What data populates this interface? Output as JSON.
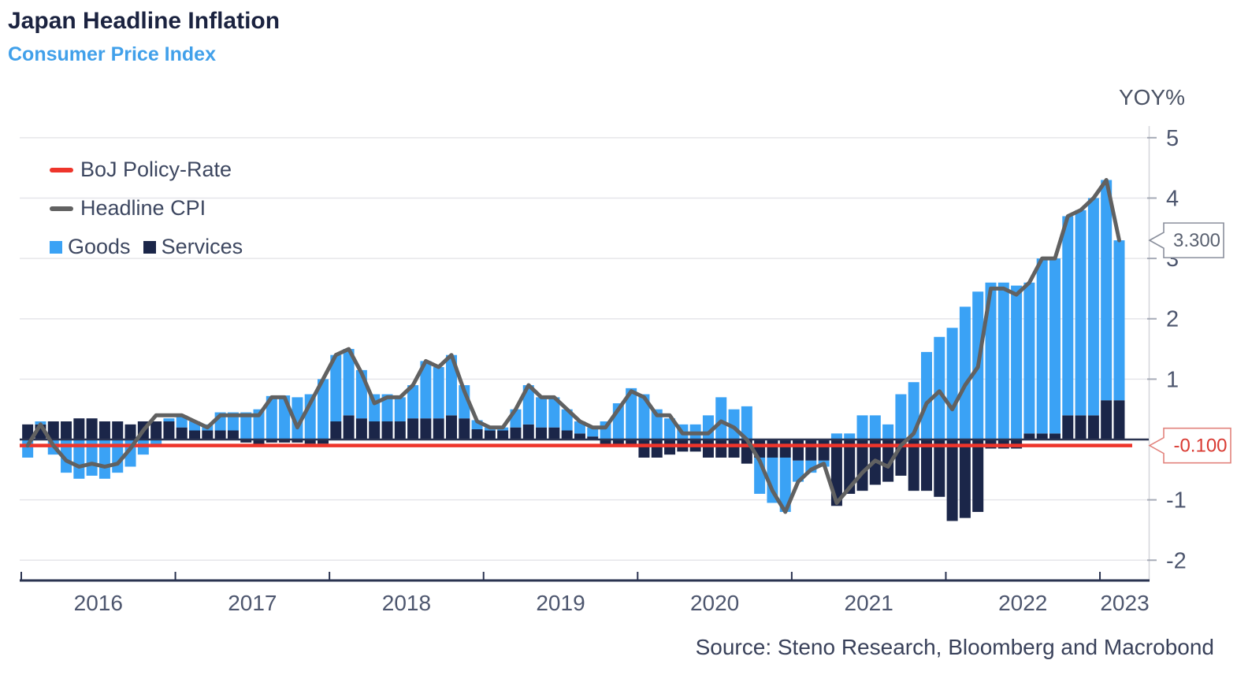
{
  "header": {
    "title": "Japan Headline Inflation",
    "subtitle": "Consumer Price Index",
    "unit_label": "YOY%"
  },
  "source": "Source: Steno Research, Bloomberg and Macrobond",
  "legend": {
    "rows": [
      [
        {
          "label": "BoJ Policy-Rate",
          "marker": "line",
          "color": "#ee352b"
        }
      ],
      [
        {
          "label": "Headline CPI",
          "marker": "line",
          "color": "#616161"
        }
      ],
      [
        {
          "label": "Goods",
          "marker": "square",
          "color": "#3aa2f5"
        },
        {
          "label": "Services",
          "marker": "square",
          "color": "#1b2649"
        }
      ]
    ]
  },
  "callouts": {
    "cpi_last": {
      "value": "3.300",
      "at": 3.3,
      "border": "#8a8f9c",
      "text_color": "#5a6170"
    },
    "policy_rate": {
      "value": "-0.100",
      "at": -0.1,
      "border": "#e2837d",
      "text_color": "#d93a32"
    }
  },
  "colors": {
    "goods": "#3aa2f5",
    "services": "#1b2649",
    "cpi_line": "#616161",
    "policy_line": "#ee352b",
    "gridline": "#e6e6ea",
    "zero_line": "#2a3350",
    "axis_line": "#2a3350",
    "y_axis_line": "#d5d6da",
    "y_tick": "#a6abb7",
    "tick_label": "#4d566e"
  },
  "chart_data": {
    "type": "bar",
    "subtype": "stacked monthly bars with two overlay lines",
    "title": "Japan Headline Inflation",
    "subtitle": "Consumer Price Index",
    "ylabel": "YOY%",
    "ylim": [
      -2.35,
      5.2
    ],
    "grid": true,
    "legend_position": "top-left",
    "start_month": "2016-01",
    "end_month": "2023-02",
    "x_year_labels": [
      "2016",
      "2017",
      "2018",
      "2019",
      "2020",
      "2021",
      "2022",
      "2023"
    ],
    "y_ticks": [
      5,
      4,
      3,
      2,
      1,
      -1,
      -2
    ],
    "series": [
      {
        "name": "Goods",
        "type": "bar",
        "color": "#3aa2f5",
        "values": [
          -0.3,
          0.05,
          -0.25,
          -0.55,
          -0.65,
          -0.6,
          -0.65,
          -0.55,
          -0.45,
          -0.25,
          -0.1,
          0.05,
          0.2,
          0.15,
          0.1,
          0.3,
          0.3,
          0.45,
          0.5,
          0.72,
          0.73,
          0.7,
          0.75,
          1.0,
          1.1,
          1.1,
          0.8,
          0.45,
          0.45,
          0.4,
          0.55,
          0.95,
          0.85,
          1.0,
          0.55,
          0.15,
          0.05,
          0.05,
          0.3,
          0.65,
          0.5,
          0.5,
          0.35,
          0.2,
          0.15,
          0.3,
          0.6,
          0.85,
          0.75,
          0.5,
          0.35,
          0.25,
          0.25,
          0.4,
          0.7,
          0.5,
          0.55,
          -0.6,
          -0.75,
          -0.9,
          -0.35,
          -0.2,
          -0.1,
          0.1,
          0.1,
          0.4,
          0.4,
          0.25,
          0.75,
          0.95,
          1.45,
          1.7,
          1.85,
          2.2,
          2.45,
          2.6,
          2.6,
          2.55,
          2.5,
          2.9,
          2.9,
          3.3,
          3.4,
          3.6,
          3.65,
          2.65
        ]
      },
      {
        "name": "Services",
        "type": "bar",
        "color": "#1b2649",
        "values": [
          0.25,
          0.25,
          0.3,
          0.3,
          0.35,
          0.35,
          0.3,
          0.3,
          0.25,
          0.3,
          0.3,
          0.3,
          0.2,
          0.15,
          0.15,
          0.15,
          0.15,
          -0.05,
          -0.1,
          -0.05,
          -0.05,
          -0.05,
          -0.07,
          -0.07,
          0.3,
          0.4,
          0.35,
          0.3,
          0.3,
          0.3,
          0.35,
          0.35,
          0.35,
          0.4,
          0.35,
          0.17,
          0.15,
          0.15,
          0.2,
          0.25,
          0.2,
          0.2,
          0.15,
          0.1,
          0.05,
          -0.1,
          -0.1,
          -0.1,
          -0.3,
          -0.3,
          -0.25,
          -0.2,
          -0.2,
          -0.3,
          -0.3,
          -0.3,
          -0.4,
          -0.3,
          -0.3,
          -0.3,
          -0.35,
          -0.35,
          -0.35,
          -1.1,
          -0.9,
          -0.85,
          -0.75,
          -0.7,
          -0.6,
          -0.85,
          -0.85,
          -0.95,
          -1.35,
          -1.3,
          -1.2,
          -0.15,
          -0.15,
          -0.15,
          0.1,
          0.1,
          0.1,
          0.4,
          0.4,
          0.4,
          0.65,
          0.65
        ]
      },
      {
        "name": "Headline CPI",
        "type": "line",
        "color": "#616161",
        "values": [
          -0.1,
          0.25,
          -0.1,
          -0.35,
          -0.45,
          -0.4,
          -0.45,
          -0.4,
          -0.15,
          0.15,
          0.4,
          0.4,
          0.4,
          0.3,
          0.2,
          0.4,
          0.4,
          0.4,
          0.4,
          0.7,
          0.7,
          0.2,
          0.6,
          1.0,
          1.4,
          1.5,
          1.1,
          0.6,
          0.7,
          0.7,
          0.9,
          1.3,
          1.2,
          1.4,
          0.8,
          0.3,
          0.2,
          0.2,
          0.5,
          0.9,
          0.7,
          0.7,
          0.5,
          0.3,
          0.2,
          0.2,
          0.5,
          0.8,
          0.7,
          0.4,
          0.4,
          0.1,
          0.1,
          0.1,
          0.3,
          0.2,
          0.0,
          -0.35,
          -0.85,
          -1.2,
          -0.7,
          -0.5,
          -0.4,
          -1.05,
          -0.8,
          -0.55,
          -0.35,
          -0.45,
          -0.1,
          0.1,
          0.6,
          0.8,
          0.5,
          0.9,
          1.2,
          2.5,
          2.5,
          2.4,
          2.6,
          3.0,
          3.0,
          3.7,
          3.8,
          4.0,
          4.3,
          3.3
        ]
      },
      {
        "name": "BoJ Policy-Rate",
        "type": "line",
        "color": "#ee352b",
        "constant": -0.1
      }
    ]
  }
}
